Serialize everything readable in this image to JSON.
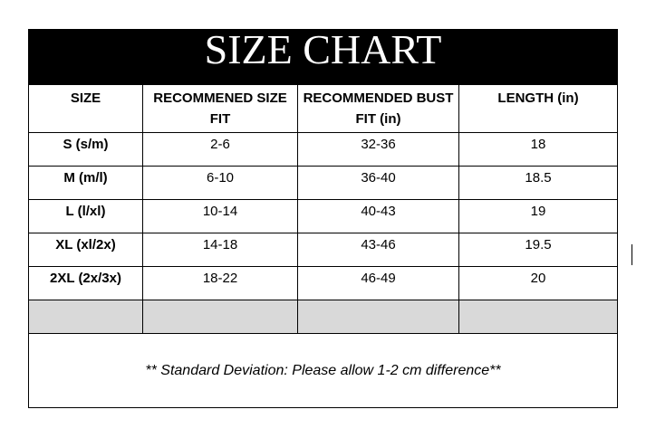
{
  "title": "SIZE CHART",
  "headers": [
    "SIZE",
    "RECOMMENED SIZE FIT",
    "RECOMMENDED BUST FIT (in)",
    "LENGTH (in)"
  ],
  "rows": [
    [
      "S (s/m)",
      "2-6",
      "32-36",
      "18"
    ],
    [
      "M (m/l)",
      "6-10",
      "36-40",
      "18.5"
    ],
    [
      "L (l/xl)",
      "10-14",
      "40-43",
      "19"
    ],
    [
      "XL (xl/2x)",
      "14-18",
      "43-46",
      "19.5"
    ],
    [
      "2XL (2x/3x)",
      "18-22",
      "46-49",
      "20"
    ]
  ],
  "footnote": "** Standard Deviation: Please allow 1-2 cm difference**",
  "colors": {
    "title_bg": "#000000",
    "empty_row_bg": "#d9d9d9"
  }
}
